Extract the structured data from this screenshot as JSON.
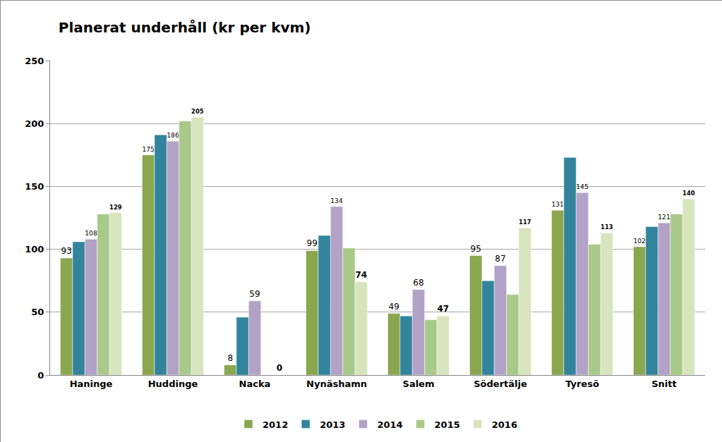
{
  "chart_data": {
    "type": "bar",
    "title": "Planerat underhåll (kr per kvm)",
    "categories": [
      "Haninge",
      "Huddinge",
      "Nacka",
      "Nynäshamn",
      "Salem",
      "Södertälje",
      "Tyresö",
      "Snitt"
    ],
    "series": [
      {
        "name": "2012",
        "color": "#8aa64f",
        "data_labels": true,
        "values": [
          93,
          175,
          8,
          99,
          49,
          95,
          131,
          102
        ]
      },
      {
        "name": "2013",
        "color": "#31849b",
        "data_labels": false,
        "values": [
          106,
          191,
          46,
          111,
          47,
          75,
          173,
          118
        ]
      },
      {
        "name": "2014",
        "color": "#b3a2c7",
        "data_labels": true,
        "values": [
          108,
          186,
          59,
          134,
          68,
          87,
          145,
          121
        ]
      },
      {
        "name": "2015",
        "color": "#a9c98a",
        "data_labels": false,
        "values": [
          128,
          202,
          null,
          101,
          44,
          64,
          104,
          128
        ]
      },
      {
        "name": "2016",
        "color": "#d7e4bd",
        "data_labels": true,
        "values": [
          129,
          205,
          0,
          74,
          47,
          117,
          113,
          140
        ]
      }
    ],
    "ylim": [
      0,
      250
    ],
    "yticks": [
      0,
      50,
      100,
      150,
      200,
      250
    ],
    "grid": true,
    "legend": "bottom"
  }
}
